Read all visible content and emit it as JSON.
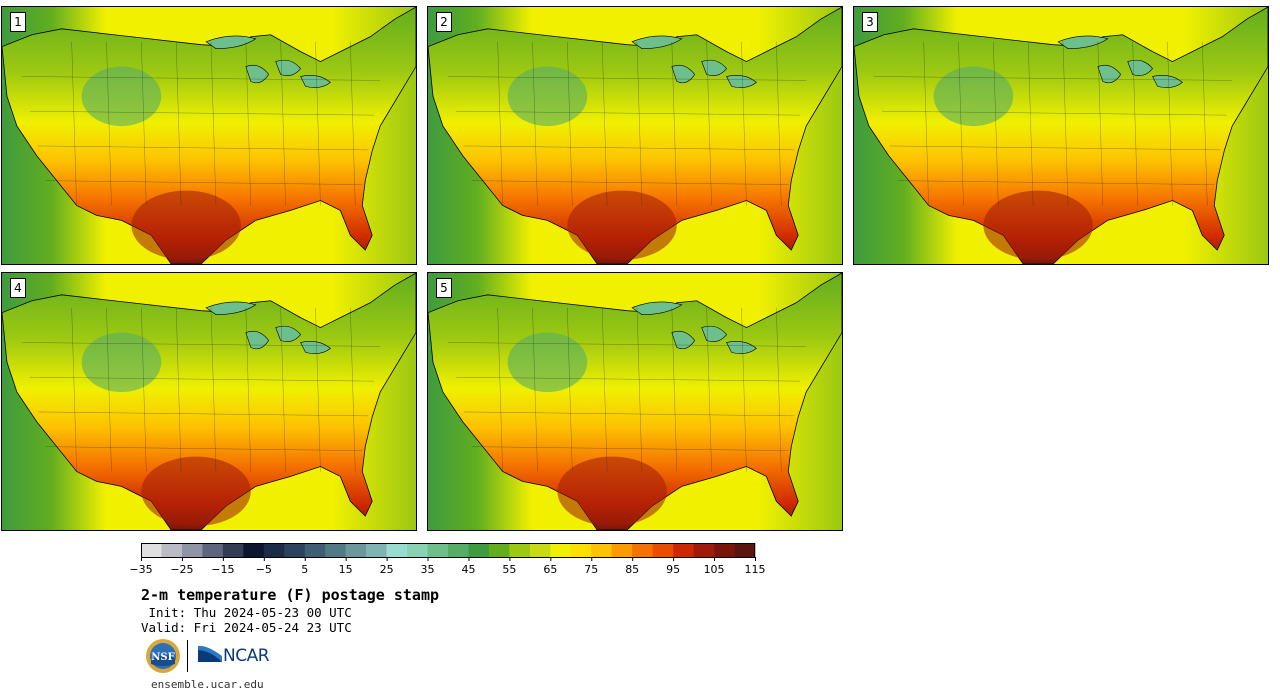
{
  "panels": [
    {
      "label": "1"
    },
    {
      "label": "2"
    },
    {
      "label": "3"
    },
    {
      "label": "4"
    },
    {
      "label": "5"
    }
  ],
  "colorbar": {
    "colors": [
      "#e0e0e0",
      "#b9bcc5",
      "#8f95a6",
      "#5e667e",
      "#333c55",
      "#0d1631",
      "#1b2c48",
      "#2a4460",
      "#3d5e74",
      "#517a87",
      "#6c979c",
      "#80b4b3",
      "#98ddd0",
      "#89d2b3",
      "#6dbf8b",
      "#56ad66",
      "#3f9b3f",
      "#62ae1f",
      "#9cc812",
      "#c6db14",
      "#f0f000",
      "#fde000",
      "#fdc200",
      "#fc9a00",
      "#f57200",
      "#ea4c00",
      "#ce2800",
      "#a01b0a",
      "#7a1608",
      "#5a160e"
    ],
    "tick_labels": [
      "−35",
      "−25",
      "−15",
      "−5",
      "5",
      "15",
      "25",
      "35",
      "45",
      "55",
      "65",
      "75",
      "85",
      "95",
      "105",
      "115"
    ]
  },
  "title": "2-m temperature (F) postage stamp",
  "init": " Init: Thu 2024-05-23 00 UTC",
  "valid": "Valid: Fri 2024-05-24 23 UTC",
  "logos": {
    "nsf": "NSF",
    "ncar": "NCAR"
  },
  "footer_url": "ensemble.ucar.edu"
}
